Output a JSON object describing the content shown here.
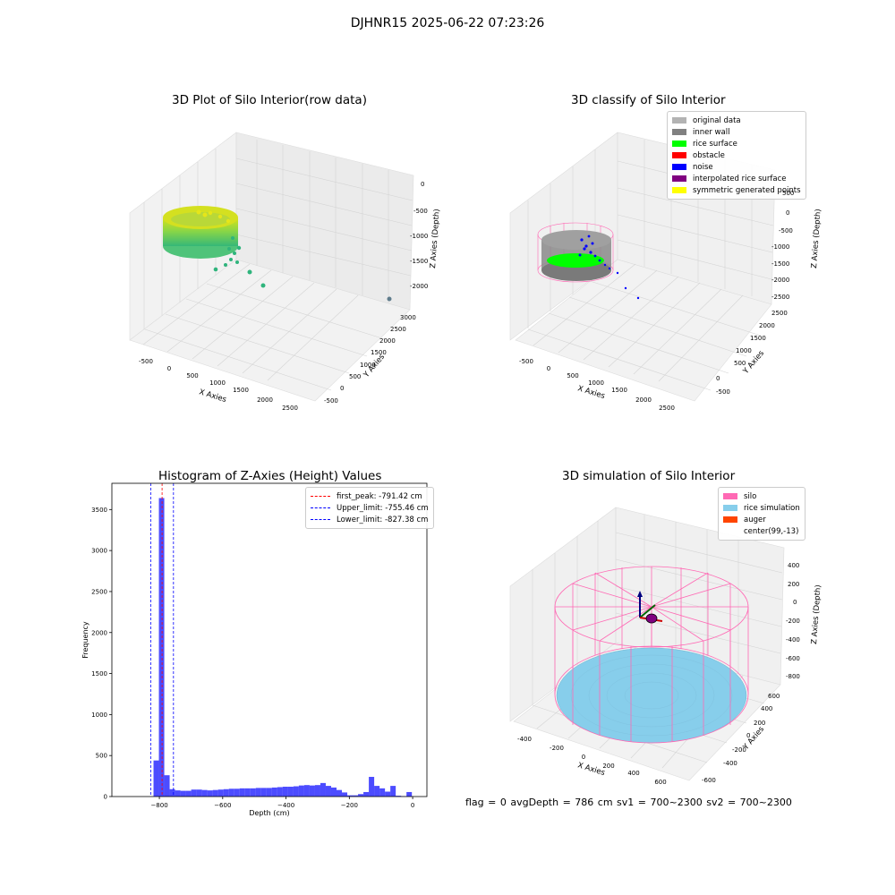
{
  "figure": {
    "suptitle": "DJHNR15 2025-06-22 07:23:26"
  },
  "panel1": {
    "title": "3D Plot of Silo Interior(row data)",
    "xlabel": "X Axies",
    "ylabel": "Y Axies",
    "zlabel": "Z Axies (Depth)",
    "xticks": [
      "-500",
      "0",
      "500",
      "1000",
      "1500",
      "2000",
      "2500"
    ],
    "yticks": [
      "-500",
      "0",
      "500",
      "1000",
      "1500",
      "2000",
      "2500",
      "3000"
    ],
    "zticks": [
      "0",
      "-500",
      "-1000",
      "-1500",
      "-2000"
    ]
  },
  "panel2": {
    "title": "3D classify of Silo Interior",
    "xlabel": "X Axies",
    "ylabel": "Y Axies",
    "zlabel": "Z Axies (Depth)",
    "xticks": [
      "-500",
      "0",
      "500",
      "1000",
      "1500",
      "2000",
      "2500"
    ],
    "yticks": [
      "-500",
      "0",
      "500",
      "1000",
      "1500",
      "2000",
      "2500"
    ],
    "zticks": [
      "500",
      "0",
      "-500",
      "-1000",
      "-1500",
      "-2000",
      "-2500"
    ],
    "legend": [
      {
        "label": "original data",
        "color": "#b3b3b3"
      },
      {
        "label": "inner wall",
        "color": "#808080"
      },
      {
        "label": "rice surface",
        "color": "#00ff00"
      },
      {
        "label": "obstacle",
        "color": "#ff0000"
      },
      {
        "label": "noise",
        "color": "#0000ff"
      },
      {
        "label": "interpolated rice surface",
        "color": "#800080"
      },
      {
        "label": "symmetric generated points",
        "color": "#ffff00"
      }
    ]
  },
  "panel3": {
    "title": "Histogram of Z-Axies (Height) Values",
    "legend": [
      {
        "label": "first_peak: -791.42 cm",
        "color": "#ff0000"
      },
      {
        "label": "Upper_limit: -755.46 cm",
        "color": "#0000ff"
      },
      {
        "label": "Lower_limit: -827.38 cm",
        "color": "#0000ff"
      }
    ]
  },
  "panel4": {
    "title": "3D simulation of Silo Interior",
    "xlabel": "X Axies",
    "ylabel": "Y Axies",
    "zlabel": "Z Axies (Depth)",
    "xticks": [
      "-400",
      "-200",
      "0",
      "200",
      "400",
      "600"
    ],
    "yticks": [
      "-600",
      "-400",
      "-200",
      "0",
      "200",
      "400",
      "600"
    ],
    "zticks": [
      "400",
      "200",
      "0",
      "-200",
      "-400",
      "-600",
      "-800"
    ],
    "legend": [
      {
        "label": "silo",
        "color": "#ff69b4"
      },
      {
        "label": "rice simulation",
        "color": "#87ceeb"
      },
      {
        "label": "auger",
        "color": "#ff4500"
      },
      {
        "label": "center(99,-13)",
        "color": ""
      }
    ]
  },
  "footer": {
    "text": "flag = 0     avgDepth = 786 cm  sv1 = 700~2300  sv2 = 700~2300"
  },
  "chart_data": [
    {
      "type": "bar",
      "title": "Histogram of Z-Axies (Height) Values",
      "xlabel": "Depth (cm)",
      "ylabel": "Frequency",
      "xlim": [
        -950,
        45
      ],
      "ylim": [
        0,
        3820
      ],
      "xticks": [
        -800,
        -600,
        -400,
        -200,
        0
      ],
      "yticks": [
        0,
        500,
        1000,
        1500,
        2000,
        2500,
        3000,
        3500
      ],
      "bin_width": 17,
      "color": "#0000ff",
      "bins": [
        {
          "x": -810,
          "v": 440
        },
        {
          "x": -793,
          "v": 3640
        },
        {
          "x": -776,
          "v": 260
        },
        {
          "x": -759,
          "v": 90
        },
        {
          "x": -742,
          "v": 75
        },
        {
          "x": -725,
          "v": 70
        },
        {
          "x": -708,
          "v": 70
        },
        {
          "x": -691,
          "v": 85
        },
        {
          "x": -674,
          "v": 85
        },
        {
          "x": -657,
          "v": 80
        },
        {
          "x": -640,
          "v": 75
        },
        {
          "x": -623,
          "v": 80
        },
        {
          "x": -606,
          "v": 85
        },
        {
          "x": -589,
          "v": 90
        },
        {
          "x": -572,
          "v": 95
        },
        {
          "x": -555,
          "v": 95
        },
        {
          "x": -538,
          "v": 100
        },
        {
          "x": -521,
          "v": 100
        },
        {
          "x": -504,
          "v": 100
        },
        {
          "x": -487,
          "v": 105
        },
        {
          "x": -470,
          "v": 105
        },
        {
          "x": -453,
          "v": 105
        },
        {
          "x": -436,
          "v": 110
        },
        {
          "x": -419,
          "v": 115
        },
        {
          "x": -402,
          "v": 120
        },
        {
          "x": -385,
          "v": 120
        },
        {
          "x": -368,
          "v": 125
        },
        {
          "x": -351,
          "v": 135
        },
        {
          "x": -334,
          "v": 140
        },
        {
          "x": -317,
          "v": 135
        },
        {
          "x": -300,
          "v": 140
        },
        {
          "x": -283,
          "v": 165
        },
        {
          "x": -266,
          "v": 130
        },
        {
          "x": -249,
          "v": 110
        },
        {
          "x": -232,
          "v": 80
        },
        {
          "x": -215,
          "v": 50
        },
        {
          "x": -198,
          "v": 15
        },
        {
          "x": -181,
          "v": 15
        },
        {
          "x": -164,
          "v": 30
        },
        {
          "x": -147,
          "v": 55
        },
        {
          "x": -130,
          "v": 240
        },
        {
          "x": -113,
          "v": 130
        },
        {
          "x": -96,
          "v": 100
        },
        {
          "x": -79,
          "v": 60
        },
        {
          "x": -62,
          "v": 130
        },
        {
          "x": -45,
          "v": 10
        },
        {
          "x": -28,
          "v": 5
        },
        {
          "x": -11,
          "v": 55
        }
      ],
      "vlines": [
        {
          "x": -791.42,
          "color": "#ff0000"
        },
        {
          "x": -755.46,
          "color": "#0000ff"
        },
        {
          "x": -827.38,
          "color": "#0000ff"
        }
      ]
    }
  ]
}
